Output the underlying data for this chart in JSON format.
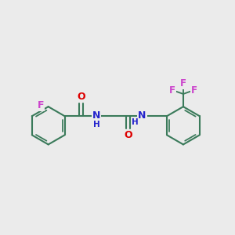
{
  "background_color": "#ebebeb",
  "bond_color": "#3a7a5a",
  "bond_width": 1.5,
  "atom_colors": {
    "F": "#cc44cc",
    "O": "#dd0000",
    "N": "#2222cc",
    "C": "#3a7a5a",
    "H": "#888888"
  },
  "figsize": [
    3.0,
    3.0
  ],
  "dpi": 100,
  "xlim": [
    0,
    10
  ],
  "ylim": [
    0,
    10
  ]
}
